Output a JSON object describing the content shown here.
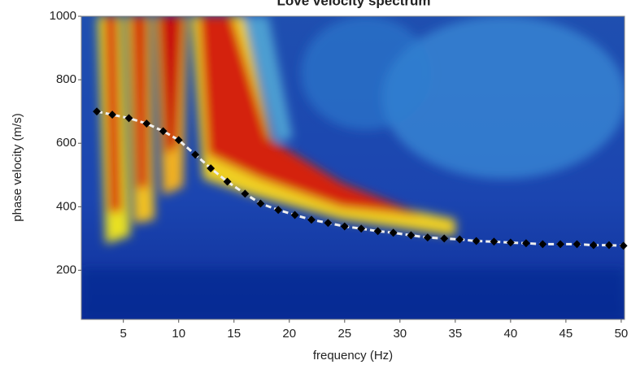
{
  "chart_data": {
    "type": "scatter",
    "title": "Love velocity spectrum",
    "x_label": "frequency (Hz)",
    "y_label": "phase velocity (m/s)",
    "xlim": [
      1.2,
      50.3
    ],
    "ylim": [
      45,
      1000
    ],
    "xticks": [
      5,
      10,
      15,
      20,
      25,
      30,
      35,
      40,
      45,
      50
    ],
    "yticks": [
      200,
      400,
      600,
      800,
      1000
    ],
    "series": [
      {
        "color": "#000000",
        "line_color": "#f0f0f0",
        "x": [
          2.6,
          4.0,
          5.5,
          7.1,
          8.6,
          10.0,
          11.5,
          12.9,
          14.4,
          16.0,
          17.4,
          19.0,
          20.5,
          22.0,
          23.5,
          25.0,
          26.5,
          28.0,
          29.4,
          31.0,
          32.5,
          34.0,
          35.4,
          36.9,
          38.5,
          40.0,
          41.4,
          42.9,
          44.5,
          46.0,
          47.5,
          48.9,
          50.2
        ],
        "values": [
          700,
          690,
          679,
          662,
          638,
          610,
          564,
          521,
          479,
          441,
          410,
          390,
          374,
          359,
          349,
          338,
          331,
          323,
          318,
          310,
          303,
          300,
          297,
          292,
          290,
          287,
          285,
          282,
          282,
          282,
          279,
          279,
          277
        ]
      }
    ]
  }
}
